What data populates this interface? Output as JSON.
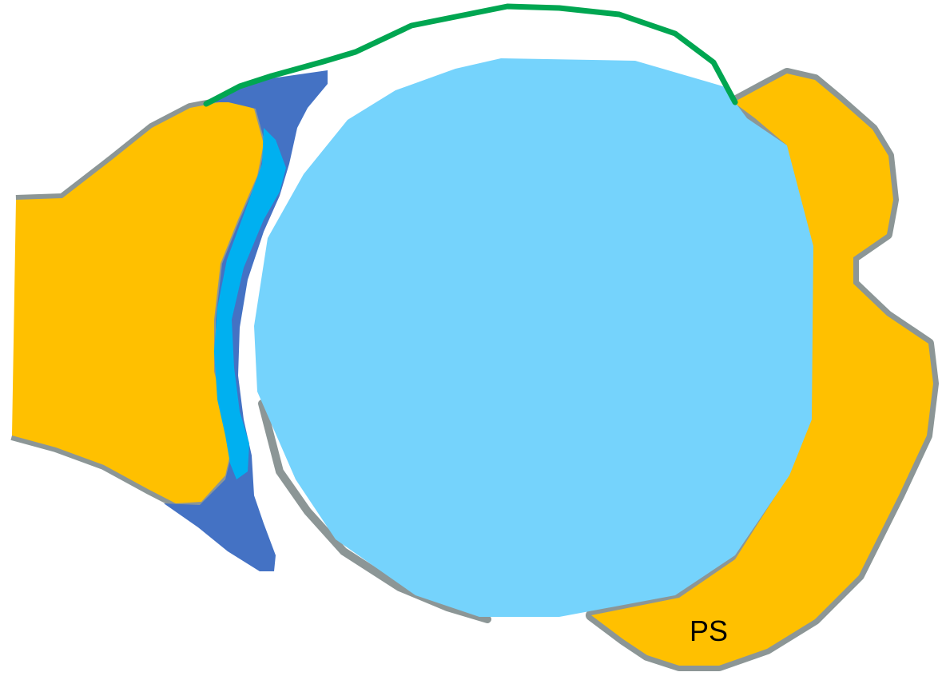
{
  "labels": {
    "right_region": "PS"
  },
  "colors": {
    "bone_fill": "#FFC000",
    "bone_outline": "#8C9696",
    "large_ball": "#75D3FC",
    "dark_blue_wedge": "#4472C4",
    "bright_blue_strip": "#00B0F0",
    "green_curve": "#00A651",
    "background": "#FFFFFF"
  }
}
